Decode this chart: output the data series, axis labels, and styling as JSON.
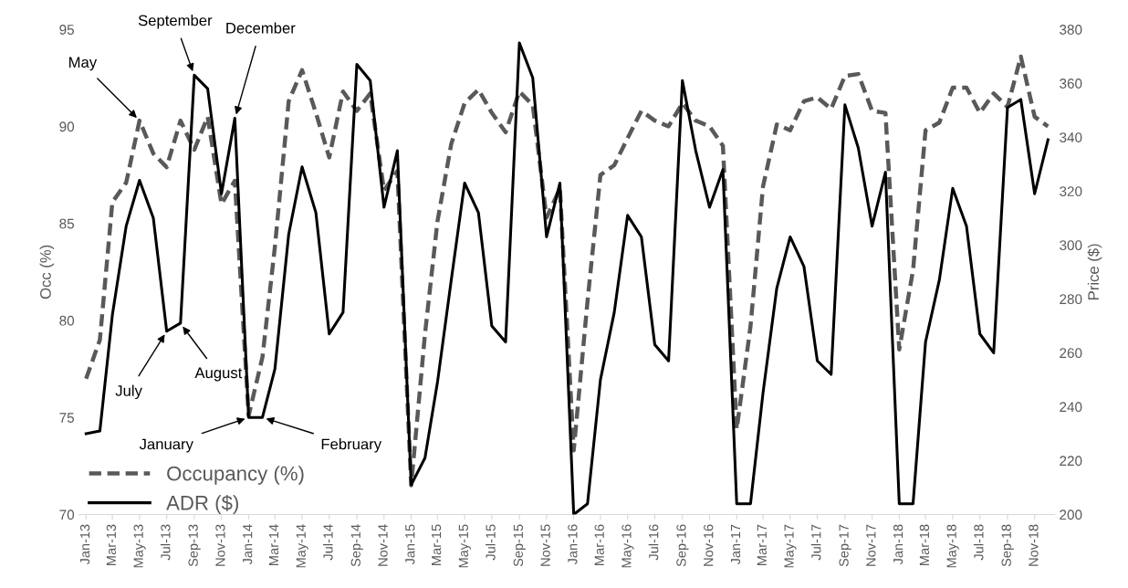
{
  "chart_data": {
    "type": "line",
    "ylabel": "Occ (%)",
    "y2label": "Price ($)",
    "x": [
      "2013-01",
      "2013-02",
      "2013-03",
      "2013-04",
      "2013-05",
      "2013-06",
      "2013-07",
      "2013-08",
      "2013-09",
      "2013-10",
      "2013-11",
      "2013-12",
      "2014-01",
      "2014-02",
      "2014-03",
      "2014-04",
      "2014-05",
      "2014-06",
      "2014-07",
      "2014-08",
      "2014-09",
      "2014-10",
      "2014-11",
      "2014-12",
      "2015-01",
      "2015-02",
      "2015-03",
      "2015-04",
      "2015-05",
      "2015-06",
      "2015-07",
      "2015-08",
      "2015-09",
      "2015-10",
      "2015-11",
      "2015-12",
      "2016-01",
      "2016-02",
      "2016-03",
      "2016-04",
      "2016-05",
      "2016-06",
      "2016-07",
      "2016-08",
      "2016-09",
      "2016-10",
      "2016-11",
      "2016-12",
      "2017-01",
      "2017-02",
      "2017-03",
      "2017-04",
      "2017-05",
      "2017-06",
      "2017-07",
      "2017-08",
      "2017-09",
      "2017-10",
      "2017-11",
      "2017-12",
      "2018-01",
      "2018-02",
      "2018-03",
      "2018-04",
      "2018-05",
      "2018-06",
      "2018-07",
      "2018-08",
      "2018-09",
      "2018-10",
      "2018-11",
      "2018-12"
    ],
    "series": [
      {
        "name": "Occupancy (%)",
        "color": "#595959",
        "line_style": "dashed",
        "values": [
          77.0,
          79.0,
          86.1,
          87.1,
          90.3,
          88.6,
          87.9,
          90.3,
          88.8,
          90.5,
          86.0,
          87.2,
          75.1,
          78.1,
          83.8,
          91.3,
          92.9,
          90.7,
          88.4,
          91.8,
          90.8,
          91.7,
          86.7,
          87.7,
          71.5,
          79.3,
          85.1,
          89.1,
          91.2,
          91.9,
          90.7,
          89.7,
          91.8,
          91.1,
          85.3,
          86.8,
          73.3,
          81.0,
          87.5,
          88.0,
          89.4,
          90.8,
          90.3,
          90.0,
          91.2,
          90.3,
          90.0,
          89.0,
          74.4,
          79.7,
          86.9,
          90.1,
          89.8,
          91.3,
          91.5,
          90.9,
          92.6,
          92.7,
          90.8,
          90.7,
          78.5,
          82.6,
          89.8,
          90.2,
          92.0,
          92.0,
          90.7,
          91.7,
          91.0,
          93.6,
          90.5,
          90.0
        ]
      },
      {
        "name": "ADR ($)",
        "color": "#000000",
        "line_style": "solid",
        "axis": "y2",
        "values": [
          230,
          231,
          274,
          307,
          324,
          310,
          268,
          271,
          363,
          358,
          319,
          347,
          236,
          236,
          254,
          304,
          329,
          312,
          267,
          275,
          367,
          361,
          314,
          335,
          211,
          221,
          249,
          287,
          323,
          312,
          270,
          264,
          375,
          362,
          303,
          323,
          200,
          204,
          250,
          275,
          311,
          303,
          263,
          257,
          361,
          335,
          314,
          328,
          204,
          204,
          245,
          284,
          303,
          292,
          257,
          252,
          352,
          336,
          307,
          327,
          204,
          204,
          264,
          287,
          321,
          307,
          267,
          260,
          351,
          354,
          319,
          339
        ]
      }
    ],
    "xlim": [
      "2012-12-16",
      "2018-12-16"
    ],
    "xticks": [
      {
        "value": "2013-01",
        "label": "Jan-13"
      },
      {
        "value": "2013-03",
        "label": "Mar-13"
      },
      {
        "value": "2013-05",
        "label": "May-13"
      },
      {
        "value": "2013-07",
        "label": "Jul-13"
      },
      {
        "value": "2013-09",
        "label": "Sep-13"
      },
      {
        "value": "2013-11",
        "label": "Nov-13"
      },
      {
        "value": "2014-01",
        "label": "Jan-14"
      },
      {
        "value": "2014-03",
        "label": "Mar-14"
      },
      {
        "value": "2014-05",
        "label": "May-14"
      },
      {
        "value": "2014-07",
        "label": "Jul-14"
      },
      {
        "value": "2014-09",
        "label": "Sep-14"
      },
      {
        "value": "2014-11",
        "label": "Nov-14"
      },
      {
        "value": "2015-01",
        "label": "Jan-15"
      },
      {
        "value": "2015-03",
        "label": "Mar-15"
      },
      {
        "value": "2015-05",
        "label": "May-15"
      },
      {
        "value": "2015-07",
        "label": "Jul-15"
      },
      {
        "value": "2015-09",
        "label": "Sep-15"
      },
      {
        "value": "2015-11",
        "label": "Nov-15"
      },
      {
        "value": "2016-01",
        "label": "Jan-16"
      },
      {
        "value": "2016-03",
        "label": "Mar-16"
      },
      {
        "value": "2016-05",
        "label": "May-16"
      },
      {
        "value": "2016-07",
        "label": "Jul-16"
      },
      {
        "value": "2016-09",
        "label": "Sep-16"
      },
      {
        "value": "2016-11",
        "label": "Nov-16"
      },
      {
        "value": "2017-01",
        "label": "Jan-17"
      },
      {
        "value": "2017-03",
        "label": "Mar-17"
      },
      {
        "value": "2017-05",
        "label": "May-17"
      },
      {
        "value": "2017-07",
        "label": "Jul-17"
      },
      {
        "value": "2017-09",
        "label": "Sep-17"
      },
      {
        "value": "2017-11",
        "label": "Nov-17"
      },
      {
        "value": "2018-01",
        "label": "Jan-18"
      },
      {
        "value": "2018-03",
        "label": "Mar-18"
      },
      {
        "value": "2018-05",
        "label": "May-18"
      },
      {
        "value": "2018-07",
        "label": "Jul-18"
      },
      {
        "value": "2018-09",
        "label": "Sep-18"
      },
      {
        "value": "2018-11",
        "label": "Nov-18"
      }
    ],
    "ylim": [
      70,
      95
    ],
    "yticks": [
      70,
      75,
      80,
      85,
      90,
      95
    ],
    "y2lim": [
      200,
      380
    ],
    "y2ticks": [
      200,
      220,
      240,
      260,
      280,
      300,
      320,
      340,
      360,
      380
    ],
    "annotations": [
      {
        "text": "May",
        "x": "2013-05",
        "y": 90.3
      },
      "September",
      "December",
      "July",
      "August",
      "January",
      "February"
    ],
    "grid": false,
    "legend": "bottom left",
    "marker": "none"
  }
}
